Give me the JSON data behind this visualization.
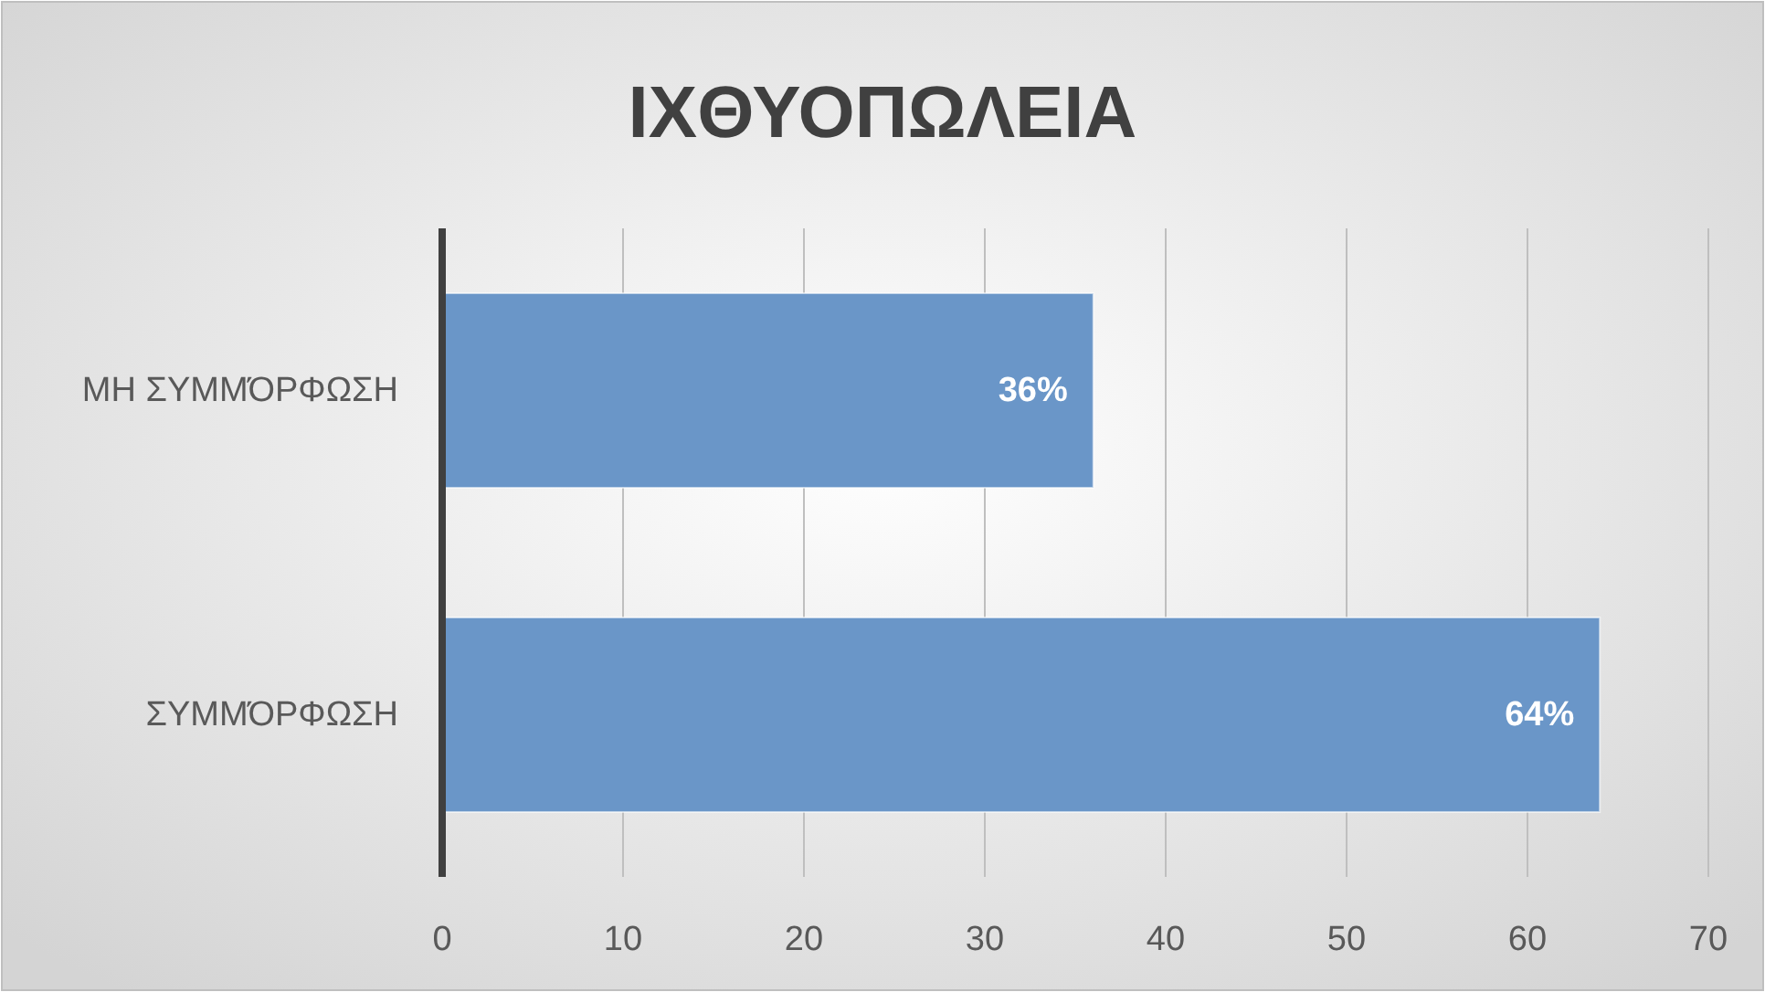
{
  "chart_data": {
    "type": "bar",
    "orientation": "horizontal",
    "title": "ΙΧΘΥΟΠΩΛΕΙΑ",
    "categories": [
      "ΜΗ ΣΥΜΜΌΡΦΩΣΗ",
      "ΣΥΜΜΌΡΦΩΣΗ"
    ],
    "values": [
      36,
      64
    ],
    "value_labels": [
      "36%",
      "64%"
    ],
    "color": "#6a96c8",
    "xlim": [
      0,
      70
    ],
    "xticks": [
      0,
      10,
      20,
      30,
      40,
      50,
      60,
      70
    ],
    "grid": "x"
  }
}
